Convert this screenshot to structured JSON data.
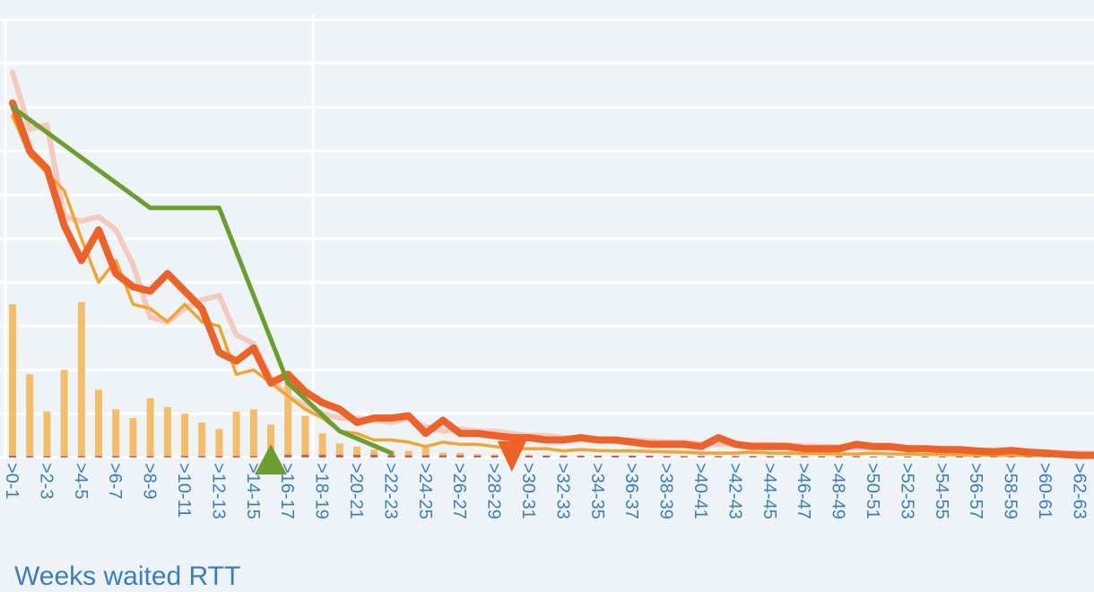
{
  "chart_data": {
    "type": "bar+line",
    "xlabel": "Weeks waited RTT",
    "ylim": [
      0,
      100
    ],
    "grid": true,
    "colors": {
      "background": "#eef3f8",
      "grid": "#ffffff",
      "axis_text": "#3a7ebf",
      "bars": "#f3bd6a",
      "bars_small": "#d9534f",
      "thick_line": "#ee6127",
      "thin_line": "#f0a530",
      "faint_line": "#f5c1b4",
      "step_line": "#6b9e2e",
      "up_marker": "#6b9e2e",
      "down_marker": "#ee6127"
    },
    "tick_labels": [
      ">0-1",
      ">2-3",
      ">4-5",
      ">6-7",
      ">8-9",
      ">10-11",
      ">12-13",
      ">14-15",
      ">16-17",
      ">18-19",
      ">20-21",
      ">22-23",
      ">24-25",
      ">26-27",
      ">28-29",
      ">30-31",
      ">32-33",
      ">34-35",
      ">36-37",
      ">38-39",
      ">40-41",
      ">42-43",
      ">44-45",
      ">46-47",
      ">48-49",
      ">50-51",
      ">52-53",
      ">54-55",
      ">56-57",
      ">58-59",
      ">60-61",
      ">62-63"
    ],
    "week_count": 64,
    "bars": [
      35,
      19,
      10.5,
      20,
      35.5,
      15.5,
      11,
      9,
      13.5,
      11.5,
      10,
      8,
      6.5,
      10.5,
      11,
      7.5,
      19.5,
      9.5,
      5.5,
      3.2,
      2.5,
      1.8,
      1.5,
      1.5,
      2.6,
      1.1,
      1,
      0.8,
      0.7,
      0.6,
      0.55,
      0.5,
      0.5,
      0.45,
      0.4,
      0.4,
      0.35,
      0.3,
      0.3,
      0.3,
      0.28,
      0.26,
      0.25,
      0.24,
      0.22,
      0.21,
      0.2,
      0.2,
      0.18,
      0.17,
      0.16,
      0.15,
      0.14,
      0.13,
      0.12,
      0.11,
      0.1,
      0.1,
      0.09,
      0.08,
      0.07,
      0.06,
      0.05,
      0.04
    ],
    "small_bars": [
      0.4,
      0.3,
      0.3,
      0.3,
      0.3,
      0.3,
      0.3,
      0.3,
      0.3,
      0.3,
      0.3,
      0.3,
      0.3,
      0.3,
      0.3,
      0.3,
      0.6,
      0.6,
      0.6,
      0.6,
      0.6,
      0.6,
      0.5,
      0.5,
      0.5,
      0.5,
      0.5,
      0.4,
      0.4,
      0.4,
      0.4,
      0.4,
      0.4,
      0.4,
      0.4,
      0.4,
      0.4,
      0.4,
      0.3,
      0.3,
      0.3,
      0.3,
      0.3,
      0.3,
      0.3,
      0.3,
      0.3,
      0.3,
      0.3,
      0.3,
      0.2,
      0.2,
      0.2,
      0.2,
      0.2,
      0.2,
      0.2,
      0.2,
      0.2,
      0.2,
      0.2,
      0.2,
      0.2,
      0.2
    ],
    "series": [
      {
        "style": "faint",
        "x": [
          0,
          1,
          2,
          3,
          4,
          5,
          6,
          7,
          8,
          9,
          10,
          11,
          12,
          13,
          14,
          15,
          16,
          17,
          18,
          19,
          20,
          21,
          22,
          23,
          24,
          25,
          26,
          27,
          28,
          29,
          30,
          31,
          32,
          33,
          34,
          35,
          36,
          37,
          38,
          39,
          40,
          41,
          42,
          43,
          44,
          45,
          46,
          47,
          48,
          49,
          50,
          51,
          52,
          53,
          54,
          55,
          56,
          57,
          58,
          59,
          60,
          61,
          62,
          63
        ],
        "values": [
          88,
          75,
          76,
          55,
          54,
          55,
          52,
          44,
          32,
          31,
          34,
          36,
          37,
          28,
          26,
          18,
          14,
          12,
          10,
          9,
          9,
          8.5,
          8,
          9,
          7,
          6,
          6.5,
          6,
          6,
          5.5,
          5,
          5,
          4.5,
          4.5,
          4,
          4,
          4,
          3.8,
          3.5,
          3.5,
          3,
          3,
          3,
          3,
          3,
          2.8,
          2.6,
          2.5,
          2.4,
          2.3,
          2.2,
          2.1,
          2,
          1.9,
          1.8,
          1.7,
          1.6,
          1.5,
          1.4,
          1.3,
          1.2,
          1.1,
          1,
          0.9
        ]
      },
      {
        "style": "thin",
        "x": [
          0,
          1,
          2,
          3,
          4,
          5,
          6,
          7,
          8,
          9,
          10,
          11,
          12,
          13,
          14,
          15,
          16,
          17,
          18,
          19,
          20,
          21,
          22,
          23,
          24,
          25,
          26,
          27,
          28,
          29,
          30,
          31,
          32,
          33,
          34,
          35,
          36,
          37,
          38,
          39,
          40,
          41,
          42,
          43,
          44,
          45,
          46,
          47,
          48,
          49,
          50,
          51,
          52,
          53,
          54,
          55,
          56,
          57,
          58,
          59,
          60,
          61,
          62,
          63
        ],
        "values": [
          78,
          69,
          65,
          61,
          50,
          40,
          45,
          35,
          34,
          31,
          35,
          31,
          30,
          19,
          20,
          17,
          14,
          11,
          9,
          6,
          5.5,
          4,
          4,
          3.5,
          2.5,
          3.5,
          3,
          3,
          2.5,
          2,
          2,
          2,
          1.5,
          1.8,
          1.6,
          1.5,
          1.5,
          1.4,
          1.3,
          1.2,
          1,
          1,
          1,
          1.2,
          1,
          1,
          0.9,
          0.9,
          0.8,
          0.8,
          1,
          0.8,
          0.8,
          0.7,
          0.7,
          0.6,
          0.6,
          0.5,
          0.5,
          0.5,
          0.4,
          0.4,
          0.4,
          0.4
        ]
      },
      {
        "style": "thick",
        "x": [
          0,
          1,
          2,
          3,
          4,
          5,
          6,
          7,
          8,
          9,
          10,
          11,
          12,
          13,
          14,
          15,
          16,
          17,
          18,
          19,
          20,
          21,
          22,
          23,
          24,
          25,
          26,
          27,
          28,
          29,
          30,
          31,
          32,
          33,
          34,
          35,
          36,
          37,
          38,
          39,
          40,
          41,
          42,
          43,
          44,
          45,
          46,
          47,
          48,
          49,
          50,
          51,
          52,
          53,
          54,
          55,
          56,
          57,
          58,
          59,
          60,
          61,
          62,
          63
        ],
        "values": [
          81,
          70,
          66,
          53,
          45,
          52,
          42,
          39,
          38,
          42,
          38,
          34,
          24,
          22,
          25,
          17,
          19,
          15,
          12.5,
          11,
          8,
          9,
          9,
          9.5,
          5.5,
          8.5,
          5.5,
          5.5,
          5,
          4.5,
          4.5,
          4,
          4,
          4.5,
          4,
          4,
          3.5,
          3,
          3,
          3,
          2.5,
          4.5,
          3,
          2.5,
          2.5,
          2.5,
          2,
          2,
          2,
          3,
          2.5,
          2.5,
          2,
          2,
          1.8,
          1.8,
          1.5,
          1.3,
          1.6,
          1.2,
          1,
          0.7,
          0.5,
          0.5
        ]
      },
      {
        "style": "step",
        "x": [
          0,
          8,
          12,
          16,
          19,
          22
        ],
        "values": [
          80,
          57,
          57,
          17,
          6,
          1
        ]
      }
    ],
    "markers": [
      {
        "shape": "triangle-up",
        "x": 15,
        "value": 0
      },
      {
        "shape": "triangle-down",
        "x": 29,
        "value": 0
      }
    ]
  }
}
